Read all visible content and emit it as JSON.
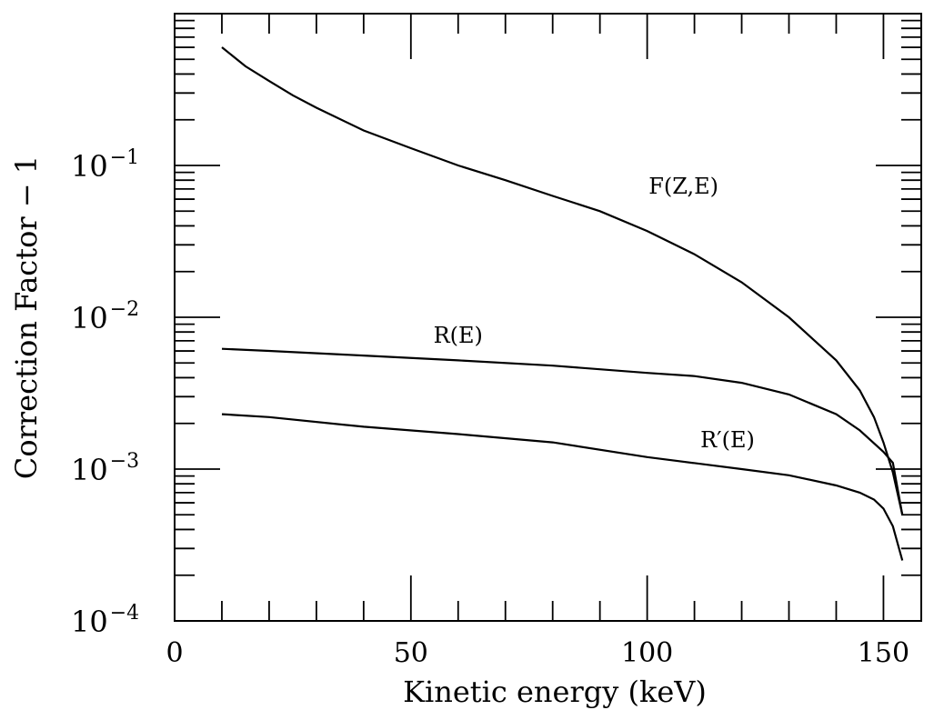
{
  "chart_data": {
    "type": "line",
    "title": "",
    "xlabel": "Kinetic energy (keV)",
    "ylabel": "Correction Factor − 1",
    "xlim": [
      0,
      158
    ],
    "ylim": [
      0.0001,
      1
    ],
    "yscale": "log",
    "x_ticks": [
      {
        "value": 0,
        "label": "0"
      },
      {
        "value": 50,
        "label": "50"
      },
      {
        "value": 100,
        "label": "100"
      },
      {
        "value": 150,
        "label": "150"
      }
    ],
    "y_ticks": [
      {
        "value": 0.0001,
        "base": "10",
        "exp": "−4"
      },
      {
        "value": 0.001,
        "base": "10",
        "exp": "−3"
      },
      {
        "value": 0.01,
        "base": "10",
        "exp": "−2"
      },
      {
        "value": 0.1,
        "base": "10",
        "exp": "−1"
      }
    ],
    "grid": false,
    "series": [
      {
        "name": "F(Z,E)",
        "points": [
          [
            10,
            0.6
          ],
          [
            15,
            0.45
          ],
          [
            20,
            0.36
          ],
          [
            25,
            0.29
          ],
          [
            30,
            0.24
          ],
          [
            40,
            0.17
          ],
          [
            50,
            0.13
          ],
          [
            60,
            0.1
          ],
          [
            70,
            0.08
          ],
          [
            80,
            0.063
          ],
          [
            90,
            0.05
          ],
          [
            100,
            0.037
          ],
          [
            110,
            0.026
          ],
          [
            120,
            0.017
          ],
          [
            130,
            0.01
          ],
          [
            140,
            0.0052
          ],
          [
            145,
            0.0033
          ],
          [
            148,
            0.0022
          ],
          [
            150,
            0.0015
          ],
          [
            152,
            0.00095
          ],
          [
            154,
            0.0005
          ]
        ]
      },
      {
        "name": "R(E)",
        "points": [
          [
            10,
            0.0062
          ],
          [
            20,
            0.006
          ],
          [
            40,
            0.0056
          ],
          [
            60,
            0.0052
          ],
          [
            80,
            0.0048
          ],
          [
            100,
            0.0043
          ],
          [
            110,
            0.0041
          ],
          [
            120,
            0.0037
          ],
          [
            130,
            0.0031
          ],
          [
            140,
            0.0023
          ],
          [
            145,
            0.0018
          ],
          [
            150,
            0.0013
          ],
          [
            152,
            0.0011
          ],
          [
            154,
            0.0005
          ]
        ]
      },
      {
        "name": "R′(E)",
        "points": [
          [
            10,
            0.0023
          ],
          [
            20,
            0.0022
          ],
          [
            40,
            0.0019
          ],
          [
            60,
            0.0017
          ],
          [
            80,
            0.0015
          ],
          [
            100,
            0.0012
          ],
          [
            120,
            0.001
          ],
          [
            130,
            0.00091
          ],
          [
            140,
            0.00078
          ],
          [
            145,
            0.0007
          ],
          [
            148,
            0.00063
          ],
          [
            150,
            0.00055
          ],
          [
            152,
            0.00042
          ],
          [
            154,
            0.00025
          ]
        ]
      }
    ]
  }
}
